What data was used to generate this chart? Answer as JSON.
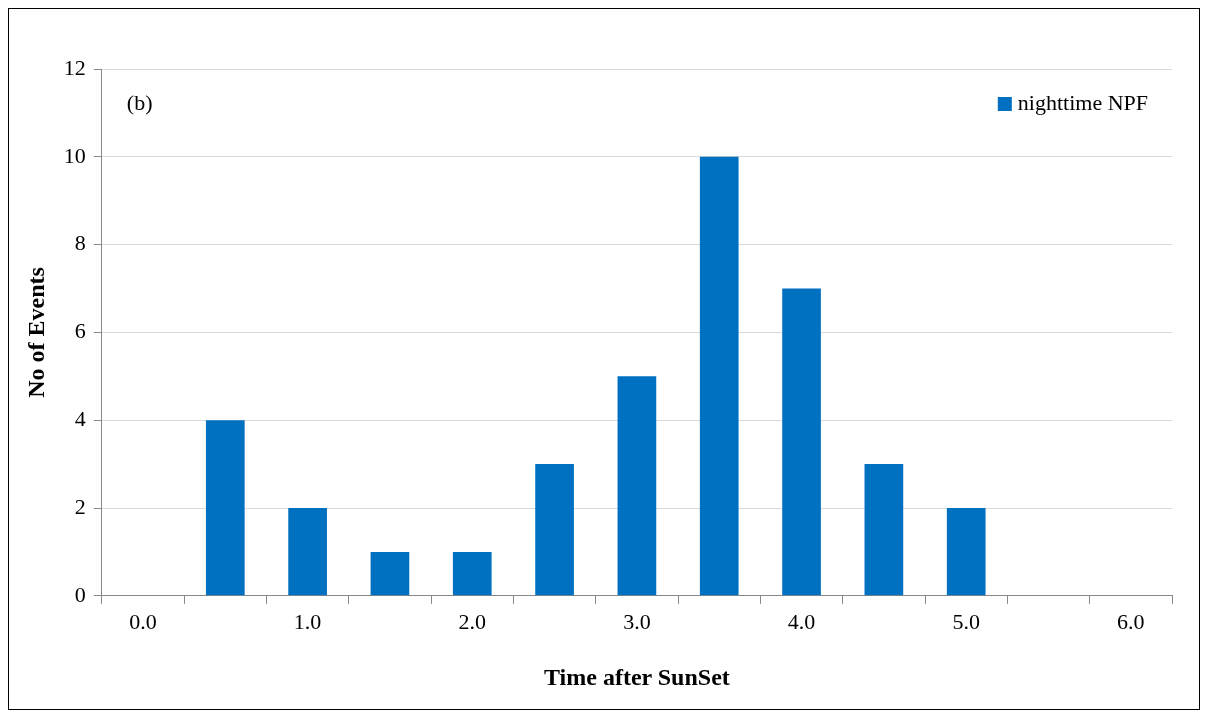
{
  "chart_data": {
    "type": "bar",
    "xlabel": "Time after SunSet",
    "ylabel": "No of Events",
    "categories": [
      "0.0",
      null,
      "1.0",
      null,
      "2.0",
      null,
      "3.0",
      null,
      "4.0",
      null,
      "5.0",
      null,
      "6.0"
    ],
    "series": [
      {
        "name": "nighttime NPF",
        "color": "#0070c0",
        "values": [
          0,
          4,
          2,
          1,
          1,
          3,
          5,
          10,
          7,
          3,
          2,
          0,
          0
        ]
      }
    ],
    "ylim": [
      0,
      12
    ],
    "yticks": [
      0,
      2,
      4,
      6,
      8,
      10,
      12
    ],
    "grid": "y",
    "legend": "top right",
    "annotations": [
      "(b)"
    ]
  }
}
